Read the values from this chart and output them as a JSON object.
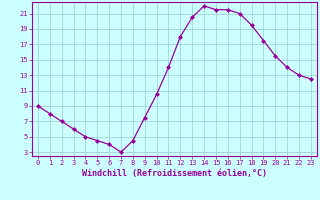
{
  "x": [
    0,
    1,
    2,
    3,
    4,
    5,
    6,
    7,
    8,
    9,
    10,
    11,
    12,
    13,
    14,
    15,
    16,
    17,
    18,
    19,
    20,
    21,
    22,
    23
  ],
  "y": [
    9,
    8,
    7,
    6,
    5,
    4.5,
    4,
    3,
    4.5,
    7.5,
    10.5,
    14,
    18,
    20.5,
    22,
    21.5,
    21.5,
    21,
    19.5,
    17.5,
    15.5,
    14,
    13,
    12.5
  ],
  "line_color": "#990099",
  "marker": "D",
  "marker_size": 2,
  "linewidth": 0.9,
  "bg_color": "#ccffff",
  "grid_color": "#99cccc",
  "xlabel": "Windchill (Refroidissement éolien,°C)",
  "yticks": [
    3,
    5,
    7,
    9,
    11,
    13,
    15,
    17,
    19,
    21
  ],
  "xticks": [
    0,
    1,
    2,
    3,
    4,
    5,
    6,
    7,
    8,
    9,
    10,
    11,
    12,
    13,
    14,
    15,
    16,
    17,
    18,
    19,
    20,
    21,
    22,
    23
  ],
  "ylim": [
    2.5,
    22.5
  ],
  "xlim": [
    -0.5,
    23.5
  ],
  "xlabel_color": "#990099",
  "tick_color": "#990099",
  "axis_color": "#990099",
  "tick_fontsize": 5,
  "xlabel_fontsize": 6
}
